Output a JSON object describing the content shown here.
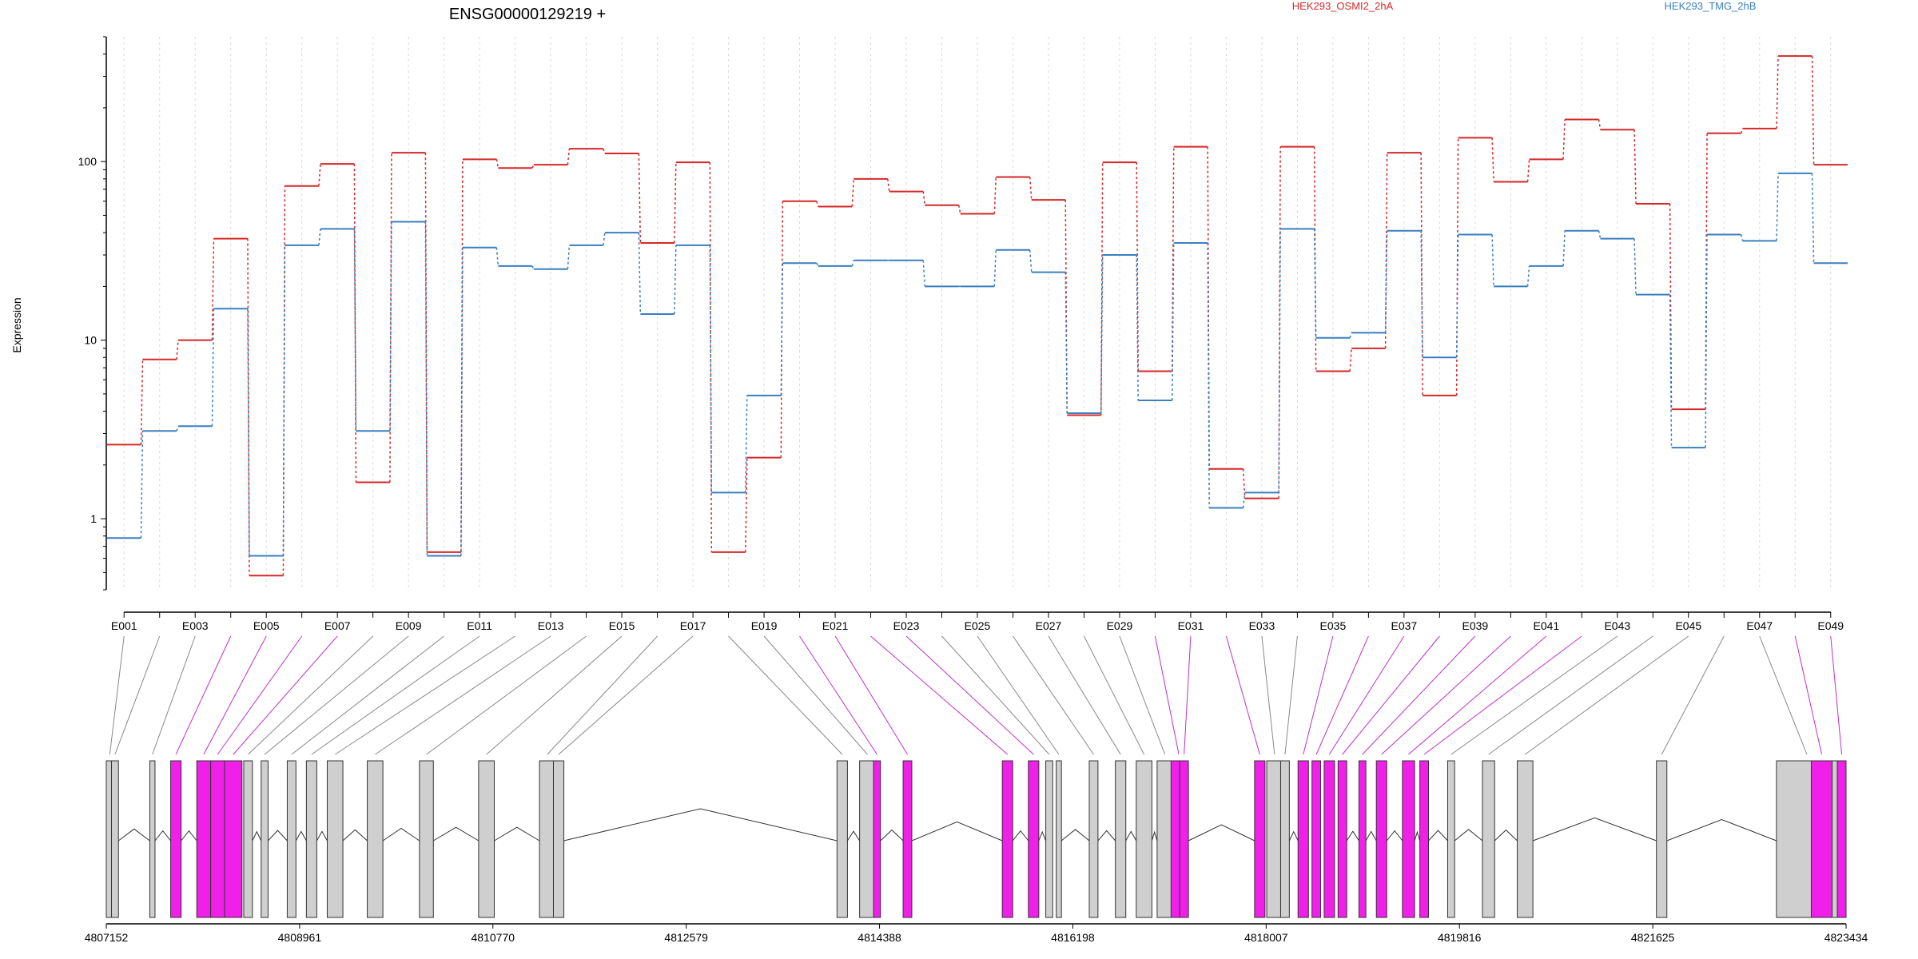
{
  "chart_data": {
    "type": "line",
    "title": "ENSG00000129219 +",
    "ylabel": "Expression",
    "yscale": "log",
    "ylim": [
      0.4,
      500
    ],
    "yticks": [
      "1",
      "10",
      "100"
    ],
    "x_labeled_exons": [
      "E001",
      "E003",
      "E005",
      "E007",
      "E009",
      "E011",
      "E013",
      "E015",
      "E017",
      "E019",
      "E021",
      "E023",
      "E025",
      "E027",
      "E029",
      "E031",
      "E033",
      "E035",
      "E037",
      "E039",
      "E041",
      "E043",
      "E045",
      "E047",
      "E049"
    ],
    "series": [
      {
        "name": "HEK293_OSMI2_2hA",
        "color": "#d62728",
        "values": [
          2.6,
          7.8,
          10,
          37,
          0.48,
          73,
          97,
          1.6,
          112,
          0.65,
          103,
          92,
          96,
          118,
          111,
          35,
          99,
          0.65,
          2.2,
          60,
          56,
          80,
          68,
          57,
          51,
          82,
          61,
          3.8,
          99,
          6.7,
          121,
          1.9,
          1.3,
          121,
          6.7,
          9,
          112,
          4.9,
          136,
          77,
          103,
          172,
          151,
          58,
          4.1,
          144,
          153,
          390,
          96
        ]
      },
      {
        "name": "HEK293_TMG_2hB",
        "color": "#3a7fc1",
        "values": [
          0.78,
          3.1,
          3.3,
          15,
          0.62,
          34,
          42,
          3.1,
          46,
          0.62,
          33,
          26,
          25,
          34,
          40,
          14,
          34,
          1.4,
          4.9,
          27,
          26,
          28,
          28,
          20,
          20,
          32,
          24,
          3.9,
          30,
          4.6,
          35,
          1.15,
          1.4,
          42,
          10.3,
          11,
          41,
          8,
          39,
          20,
          26,
          41,
          37,
          18,
          2.5,
          39,
          36,
          86,
          27
        ]
      }
    ],
    "gene_axis": {
      "tick_labels": [
        "4807152",
        "4808961",
        "4810770",
        "4812579",
        "4814388",
        "4816198",
        "4818007",
        "4819816",
        "4821625",
        "4823434"
      ],
      "highlight_color": "#f020e8",
      "exon_color": "#cfcfcf",
      "highlighted_exons": [
        3,
        4,
        5,
        6,
        19,
        20,
        21,
        22,
        29,
        30,
        31,
        34,
        35,
        36,
        37,
        38,
        39,
        40,
        41,
        47,
        48
      ]
    }
  }
}
